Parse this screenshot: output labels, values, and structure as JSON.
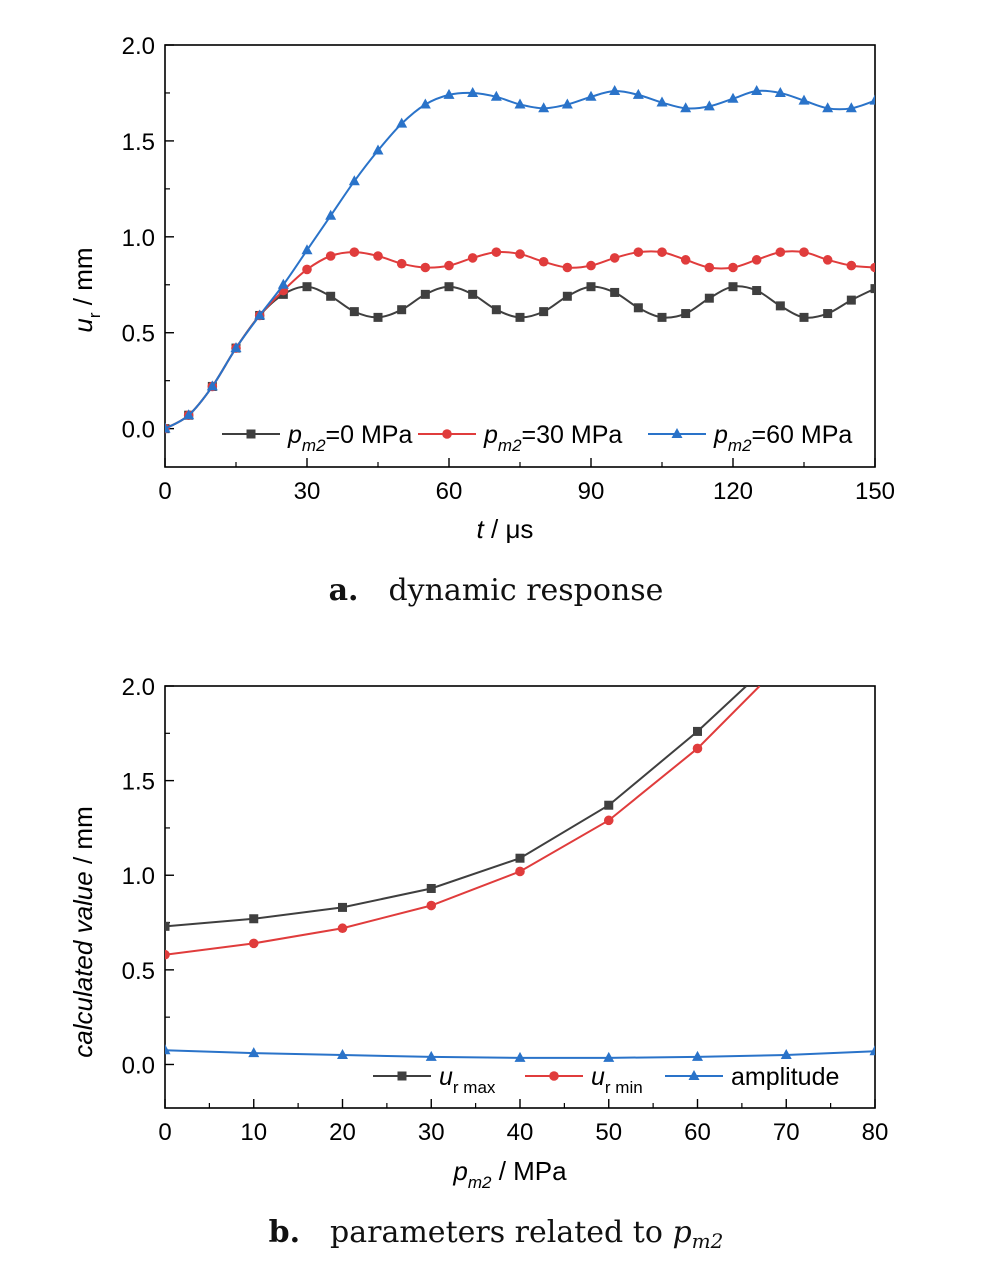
{
  "chart_data": [
    {
      "type": "line",
      "caption": {
        "letter": "a.",
        "text": "dynamic response"
      },
      "xlabel": {
        "var": "t",
        "unit": " / μs"
      },
      "ylabel": {
        "var": "u",
        "sub": "r",
        "unit": " / mm"
      },
      "xlim": [
        0,
        150
      ],
      "ylim": [
        -0.2,
        2.0
      ],
      "xticks": [
        "0",
        "30",
        "60",
        "90",
        "120",
        "150"
      ],
      "yticks": [
        "0.0",
        "0.5",
        "1.0",
        "1.5",
        "2.0"
      ],
      "legend_position": "bottom",
      "series": [
        {
          "name": {
            "var": "p",
            "sub": "m2",
            "rest": "=0 MPa"
          },
          "color": "#3f3f3f",
          "marker": "square",
          "x": [
            0,
            5,
            10,
            15,
            20,
            25,
            30,
            35,
            40,
            45,
            50,
            55,
            60,
            65,
            70,
            75,
            80,
            85,
            90,
            95,
            100,
            105,
            110,
            115,
            120,
            125,
            130,
            135,
            140,
            145,
            150
          ],
          "y": [
            0.0,
            0.07,
            0.22,
            0.42,
            0.59,
            0.7,
            0.74,
            0.69,
            0.61,
            0.58,
            0.62,
            0.7,
            0.74,
            0.7,
            0.62,
            0.58,
            0.61,
            0.69,
            0.74,
            0.71,
            0.63,
            0.58,
            0.6,
            0.68,
            0.74,
            0.72,
            0.64,
            0.58,
            0.6,
            0.67,
            0.73
          ]
        },
        {
          "name": {
            "var": "p",
            "sub": "m2",
            "rest": "=30 MPa"
          },
          "color": "#e03c3c",
          "marker": "circle",
          "x": [
            0,
            5,
            10,
            15,
            20,
            25,
            30,
            35,
            40,
            45,
            50,
            55,
            60,
            65,
            70,
            75,
            80,
            85,
            90,
            95,
            100,
            105,
            110,
            115,
            120,
            125,
            130,
            135,
            140,
            145,
            150
          ],
          "y": [
            0.0,
            0.07,
            0.22,
            0.42,
            0.59,
            0.72,
            0.83,
            0.9,
            0.92,
            0.9,
            0.86,
            0.84,
            0.85,
            0.89,
            0.92,
            0.91,
            0.87,
            0.84,
            0.85,
            0.89,
            0.92,
            0.92,
            0.88,
            0.84,
            0.84,
            0.88,
            0.92,
            0.92,
            0.88,
            0.85,
            0.84
          ]
        },
        {
          "name": {
            "var": "p",
            "sub": "m2",
            "rest": "=60 MPa"
          },
          "color": "#2a73c9",
          "marker": "triangle",
          "x": [
            0,
            5,
            10,
            15,
            20,
            25,
            30,
            35,
            40,
            45,
            50,
            55,
            60,
            65,
            70,
            75,
            80,
            85,
            90,
            95,
            100,
            105,
            110,
            115,
            120,
            125,
            130,
            135,
            140,
            145,
            150
          ],
          "y": [
            0.0,
            0.07,
            0.22,
            0.42,
            0.59,
            0.75,
            0.93,
            1.11,
            1.29,
            1.45,
            1.59,
            1.69,
            1.74,
            1.75,
            1.73,
            1.69,
            1.67,
            1.69,
            1.73,
            1.76,
            1.74,
            1.7,
            1.67,
            1.68,
            1.72,
            1.76,
            1.75,
            1.71,
            1.67,
            1.67,
            1.71
          ]
        }
      ]
    },
    {
      "type": "line",
      "caption": {
        "letter": "b.",
        "text": "parameters related to ",
        "var": "p",
        "sub": "m2"
      },
      "xlabel": {
        "var": "p",
        "sub": "m2",
        "unit": " / MPa"
      },
      "ylabel": {
        "var": "calculated value",
        "unit": " / mm"
      },
      "xlim": [
        0,
        80
      ],
      "ylim": [
        -0.23,
        2.0
      ],
      "xticks": [
        "0",
        "10",
        "20",
        "30",
        "40",
        "50",
        "60",
        "70",
        "80"
      ],
      "yticks": [
        "0.0",
        "0.5",
        "1.0",
        "1.5",
        "2.0"
      ],
      "legend_position": "bottom",
      "series": [
        {
          "name": {
            "var": "u",
            "sub": "r max",
            "rest": ""
          },
          "color": "#3f3f3f",
          "marker": "square",
          "x": [
            0,
            10,
            20,
            30,
            40,
            50,
            60,
            65.5
          ],
          "y": [
            0.73,
            0.77,
            0.83,
            0.93,
            1.09,
            1.37,
            1.76,
            2.0
          ],
          "marker_count": 7
        },
        {
          "name": {
            "var": "u",
            "sub": "r min",
            "rest": ""
          },
          "color": "#e03c3c",
          "marker": "circle",
          "x": [
            0,
            10,
            20,
            30,
            40,
            50,
            60,
            67
          ],
          "y": [
            0.58,
            0.64,
            0.72,
            0.84,
            1.02,
            1.29,
            1.67,
            2.0
          ],
          "marker_count": 7
        },
        {
          "name": {
            "var": "",
            "sub": "",
            "rest": "amplitude"
          },
          "color": "#2a73c9",
          "marker": "triangle",
          "x": [
            0,
            10,
            20,
            30,
            40,
            50,
            60,
            70,
            80
          ],
          "y": [
            0.075,
            0.06,
            0.05,
            0.04,
            0.035,
            0.035,
            0.04,
            0.05,
            0.07
          ]
        }
      ]
    }
  ]
}
